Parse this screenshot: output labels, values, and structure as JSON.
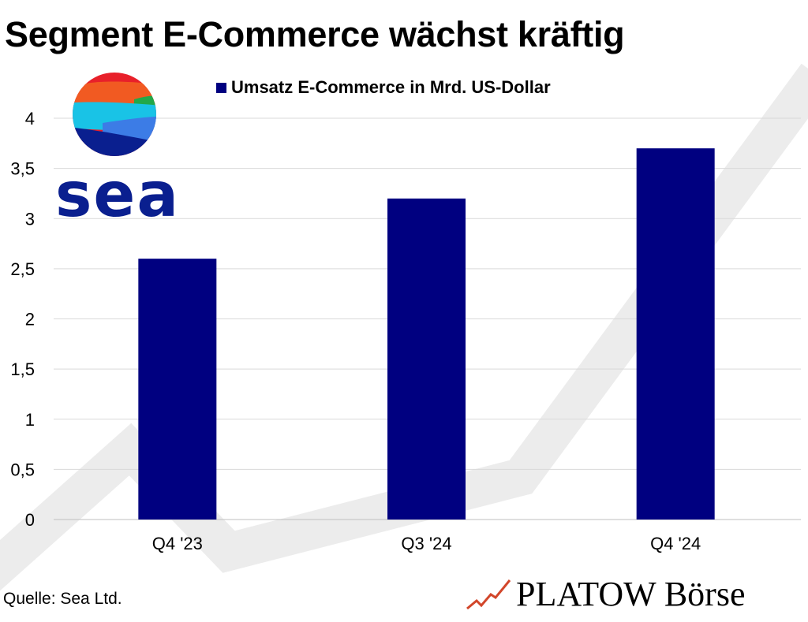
{
  "title": "Segment E-Commerce wächst kräftig",
  "legend": {
    "label": "Umsatz E-Commerce in Mrd. US-Dollar",
    "color": "#000080"
  },
  "logo": {
    "name": "sea-logo",
    "wordmark": "sea",
    "colors": [
      "#E8202A",
      "#F15A22",
      "#22A84A",
      "#19C3E6",
      "#3C7CE6",
      "#0A1F8F"
    ]
  },
  "source": "Quelle: Sea Ltd.",
  "brand": "PLATOW Börse",
  "chart_data": {
    "type": "bar",
    "categories": [
      "Q4 '23",
      "Q3 '24",
      "Q4 '24"
    ],
    "series": [
      {
        "name": "Umsatz E-Commerce in Mrd. US-Dollar",
        "values": [
          2.6,
          3.2,
          3.7
        ],
        "color": "#000080"
      }
    ],
    "title": "Segment E-Commerce wächst kräftig",
    "ylim": [
      0,
      4
    ],
    "yticks": [
      "0",
      "0,5",
      "1",
      "1,5",
      "2",
      "2,5",
      "3",
      "3,5",
      "4"
    ],
    "grid": true,
    "legend_position": "top"
  }
}
